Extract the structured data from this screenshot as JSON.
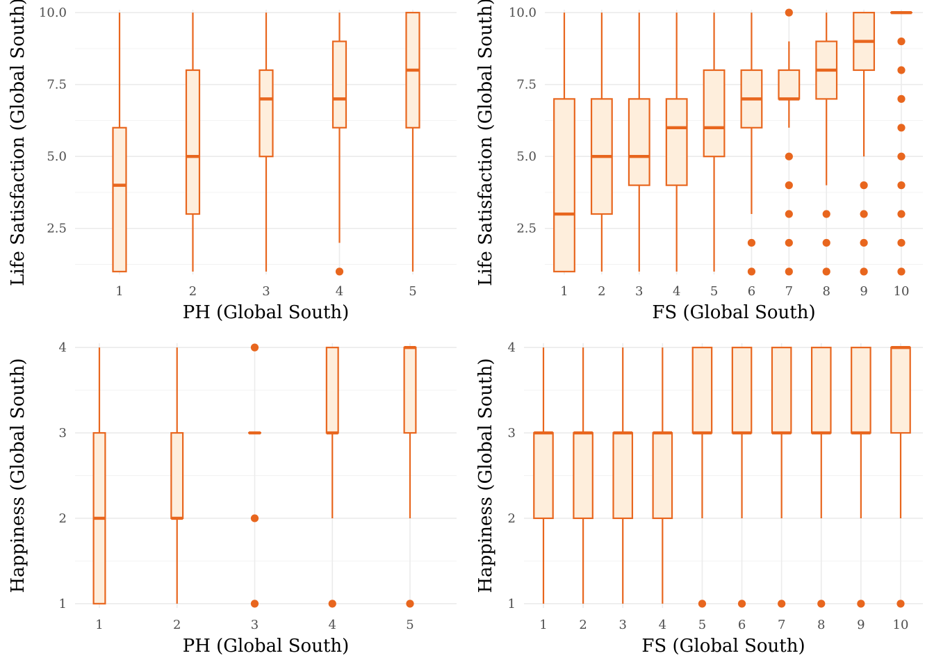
{
  "style": {
    "box_stroke": "#E8661E",
    "box_fill": "#FEEEDC",
    "outlier_fill": "#E8661E"
  },
  "chart_data": [
    {
      "type": "boxplot",
      "xlabel": "PH (Global South)",
      "ylabel": "Life Satisfaction (Global South)",
      "categories": [
        "1",
        "2",
        "3",
        "4",
        "5"
      ],
      "ylim": [
        0.9,
        10.1
      ],
      "yticks": [
        2.5,
        5.0,
        7.5,
        10.0
      ],
      "ytick_labels": [
        "2.5",
        "5.0",
        "7.5",
        "10.0"
      ],
      "box_width": 0.18,
      "boxes": [
        {
          "lower": 1,
          "q1": 1,
          "median": 4,
          "q3": 6,
          "upper": 10,
          "outliers": []
        },
        {
          "lower": 1,
          "q1": 3,
          "median": 5,
          "q3": 8,
          "upper": 10,
          "outliers": []
        },
        {
          "lower": 1,
          "q1": 5,
          "median": 7,
          "q3": 8,
          "upper": 10,
          "outliers": []
        },
        {
          "lower": 2,
          "q1": 6,
          "median": 7,
          "q3": 9,
          "upper": 10,
          "outliers": [
            1
          ]
        },
        {
          "lower": 1,
          "q1": 6,
          "median": 8,
          "q3": 10,
          "upper": 10,
          "outliers": []
        }
      ]
    },
    {
      "type": "boxplot",
      "xlabel": "FS (Global South)",
      "ylabel": "Life Satisfaction (Global South)",
      "categories": [
        "1",
        "2",
        "3",
        "4",
        "5",
        "6",
        "7",
        "8",
        "9",
        "10"
      ],
      "ylim": [
        0.9,
        10.1
      ],
      "yticks": [
        2.5,
        5.0,
        7.5,
        10.0
      ],
      "ytick_labels": [
        "2.5",
        "5.0",
        "7.5",
        "10.0"
      ],
      "box_width": 0.55,
      "boxes": [
        {
          "lower": 1,
          "q1": 1,
          "median": 3,
          "q3": 7,
          "upper": 10,
          "outliers": []
        },
        {
          "lower": 1,
          "q1": 3,
          "median": 5,
          "q3": 7,
          "upper": 10,
          "outliers": []
        },
        {
          "lower": 1,
          "q1": 4,
          "median": 5,
          "q3": 7,
          "upper": 10,
          "outliers": []
        },
        {
          "lower": 1,
          "q1": 4,
          "median": 6,
          "q3": 7,
          "upper": 10,
          "outliers": []
        },
        {
          "lower": 1,
          "q1": 5,
          "median": 6,
          "q3": 8,
          "upper": 10,
          "outliers": []
        },
        {
          "lower": 3,
          "q1": 6,
          "median": 7,
          "q3": 8,
          "upper": 10,
          "outliers": [
            1,
            2
          ]
        },
        {
          "lower": 6,
          "q1": 7,
          "median": 7,
          "q3": 8,
          "upper": 9,
          "outliers": [
            1,
            2,
            3,
            4,
            5,
            10
          ]
        },
        {
          "lower": 4,
          "q1": 7,
          "median": 8,
          "q3": 9,
          "upper": 10,
          "outliers": [
            1,
            2,
            3
          ]
        },
        {
          "lower": 5,
          "q1": 8,
          "median": 9,
          "q3": 10,
          "upper": 10,
          "outliers": [
            1,
            2,
            3,
            4
          ]
        },
        {
          "lower": 10,
          "q1": 10,
          "median": 10,
          "q3": 10,
          "upper": 10,
          "outliers": [
            1,
            2,
            3,
            4,
            5,
            6,
            7,
            8,
            9
          ]
        }
      ]
    },
    {
      "type": "boxplot",
      "xlabel": "PH (Global South)",
      "ylabel": "Happiness (Global South)",
      "categories": [
        "1",
        "2",
        "3",
        "4",
        "5"
      ],
      "ylim": [
        0.95,
        4.05
      ],
      "yticks": [
        1,
        2,
        3,
        4
      ],
      "ytick_labels": [
        "1",
        "2",
        "3",
        "4"
      ],
      "box_width": 0.15,
      "boxes": [
        {
          "lower": 1,
          "q1": 1,
          "median": 2,
          "q3": 3,
          "upper": 4,
          "outliers": []
        },
        {
          "lower": 1,
          "q1": 2,
          "median": 2,
          "q3": 3,
          "upper": 4,
          "outliers": []
        },
        {
          "lower": 3,
          "q1": 3,
          "median": 3,
          "q3": 3,
          "upper": 3,
          "outliers": [
            1,
            2,
            4
          ]
        },
        {
          "lower": 2,
          "q1": 3,
          "median": 3,
          "q3": 4,
          "upper": 4,
          "outliers": [
            1
          ]
        },
        {
          "lower": 2,
          "q1": 3,
          "median": 4,
          "q3": 4,
          "upper": 4,
          "outliers": [
            1
          ]
        }
      ]
    },
    {
      "type": "boxplot",
      "xlabel": "FS (Global South)",
      "ylabel": "Happiness (Global South)",
      "categories": [
        "1",
        "2",
        "3",
        "4",
        "5",
        "6",
        "7",
        "8",
        "9",
        "10"
      ],
      "ylim": [
        0.95,
        4.05
      ],
      "yticks": [
        1,
        2,
        3,
        4
      ],
      "ytick_labels": [
        "1",
        "2",
        "3",
        "4"
      ],
      "box_width": 0.48,
      "boxes": [
        {
          "lower": 1,
          "q1": 2,
          "median": 3,
          "q3": 3,
          "upper": 4,
          "outliers": []
        },
        {
          "lower": 1,
          "q1": 2,
          "median": 3,
          "q3": 3,
          "upper": 4,
          "outliers": []
        },
        {
          "lower": 1,
          "q1": 2,
          "median": 3,
          "q3": 3,
          "upper": 4,
          "outliers": []
        },
        {
          "lower": 1,
          "q1": 2,
          "median": 3,
          "q3": 3,
          "upper": 4,
          "outliers": []
        },
        {
          "lower": 2,
          "q1": 3,
          "median": 3,
          "q3": 4,
          "upper": 4,
          "outliers": [
            1
          ]
        },
        {
          "lower": 2,
          "q1": 3,
          "median": 3,
          "q3": 4,
          "upper": 4,
          "outliers": [
            1
          ]
        },
        {
          "lower": 2,
          "q1": 3,
          "median": 3,
          "q3": 4,
          "upper": 4,
          "outliers": [
            1
          ]
        },
        {
          "lower": 2,
          "q1": 3,
          "median": 3,
          "q3": 4,
          "upper": 4,
          "outliers": [
            1
          ]
        },
        {
          "lower": 2,
          "q1": 3,
          "median": 3,
          "q3": 4,
          "upper": 4,
          "outliers": [
            1
          ]
        },
        {
          "lower": 2,
          "q1": 3,
          "median": 4,
          "q3": 4,
          "upper": 4,
          "outliers": [
            1
          ]
        }
      ]
    }
  ]
}
